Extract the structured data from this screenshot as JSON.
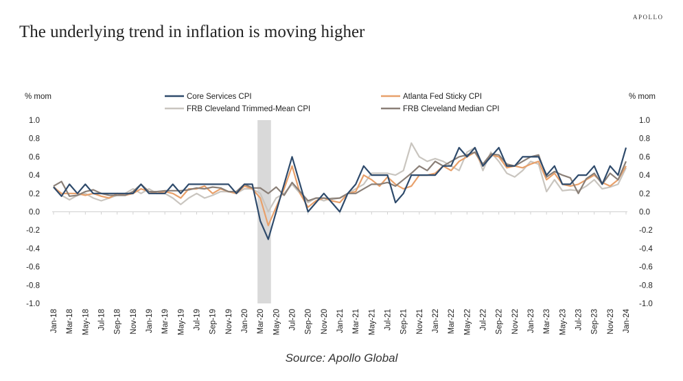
{
  "title": "The underlying trend in inflation is moving higher",
  "brand": "APOLLO",
  "source": "Source: Apollo Global",
  "chart_data": {
    "type": "line",
    "title": "The underlying trend in inflation is moving higher",
    "ylabel_left": "% mom",
    "ylabel_right": "% mom",
    "ylim": [
      -1.0,
      1.0
    ],
    "yticks": [
      "1.0",
      "0.8",
      "0.6",
      "0.4",
      "0.2",
      "0.0",
      "-0.2",
      "-0.4",
      "-0.6",
      "-0.8",
      "-1.0"
    ],
    "x_start": "Jan-18",
    "x_end": "Jan-24",
    "x_frequency": "monthly",
    "xtick_labels": [
      "Jan-18",
      "Mar-18",
      "May-18",
      "Jul-18",
      "Sep-18",
      "Nov-18",
      "Jan-19",
      "Mar-19",
      "May-19",
      "Jul-19",
      "Sep-19",
      "Nov-19",
      "Jan-20",
      "Mar-20",
      "May-20",
      "Jul-20",
      "Sep-20",
      "Nov-20",
      "Jan-21",
      "Mar-21",
      "May-21",
      "Jul-21",
      "Sep-21",
      "Nov-21",
      "Jan-22",
      "Mar-22",
      "May-22",
      "Jul-22",
      "Sep-22",
      "Nov-22",
      "Jan-23",
      "Mar-23",
      "May-23",
      "Jul-23",
      "Sep-23",
      "Nov-23",
      "Jan-24"
    ],
    "shaded_period": {
      "from": "Mar-20",
      "to": "Apr-20",
      "color": "#d9d9d9"
    },
    "grid": false,
    "legend": "top-center",
    "series": [
      {
        "name": "Core Services CPI",
        "color": "#2e4a6b",
        "values": [
          0.27,
          0.17,
          0.3,
          0.2,
          0.3,
          0.2,
          0.2,
          0.2,
          0.2,
          0.2,
          0.2,
          0.3,
          0.2,
          0.2,
          0.2,
          0.3,
          0.2,
          0.3,
          0.3,
          0.3,
          0.3,
          0.3,
          0.3,
          0.2,
          0.3,
          0.3,
          -0.1,
          -0.3,
          0.0,
          0.3,
          0.6,
          0.3,
          0.0,
          0.1,
          0.2,
          0.1,
          0.0,
          0.2,
          0.3,
          0.5,
          0.4,
          0.4,
          0.4,
          0.1,
          0.2,
          0.4,
          0.4,
          0.4,
          0.4,
          0.5,
          0.5,
          0.7,
          0.6,
          0.7,
          0.5,
          0.6,
          0.7,
          0.5,
          0.5,
          0.6,
          0.6,
          0.6,
          0.4,
          0.5,
          0.3,
          0.3,
          0.4,
          0.4,
          0.5,
          0.3,
          0.5,
          0.4,
          0.7
        ]
      },
      {
        "name": "Atlanta Fed Sticky CPI",
        "color": "#e8a06a",
        "values": [
          0.27,
          0.2,
          0.2,
          0.2,
          0.18,
          0.2,
          0.17,
          0.15,
          0.2,
          0.18,
          0.2,
          0.25,
          0.22,
          0.2,
          0.22,
          0.2,
          0.15,
          0.25,
          0.25,
          0.28,
          0.2,
          0.25,
          0.22,
          0.2,
          0.28,
          0.25,
          0.15,
          -0.15,
          0.05,
          0.25,
          0.5,
          0.2,
          0.05,
          0.12,
          0.15,
          0.12,
          0.1,
          0.2,
          0.22,
          0.4,
          0.35,
          0.28,
          0.38,
          0.3,
          0.25,
          0.28,
          0.4,
          0.4,
          0.42,
          0.5,
          0.45,
          0.55,
          0.6,
          0.65,
          0.5,
          0.62,
          0.6,
          0.48,
          0.5,
          0.48,
          0.52,
          0.55,
          0.35,
          0.42,
          0.3,
          0.28,
          0.3,
          0.35,
          0.4,
          0.32,
          0.28,
          0.35,
          0.5
        ]
      },
      {
        "name": "FRB Cleveland Trimmed-Mean CPI",
        "color": "#c9c5bf",
        "values": [
          0.28,
          0.18,
          0.13,
          0.18,
          0.2,
          0.15,
          0.12,
          0.15,
          0.18,
          0.2,
          0.25,
          0.2,
          0.25,
          0.2,
          0.2,
          0.15,
          0.08,
          0.15,
          0.2,
          0.15,
          0.18,
          0.22,
          0.22,
          0.2,
          0.25,
          0.25,
          0.2,
          0.0,
          0.15,
          0.2,
          0.3,
          0.2,
          0.1,
          0.15,
          0.12,
          0.15,
          0.15,
          0.2,
          0.25,
          0.3,
          0.42,
          0.42,
          0.42,
          0.4,
          0.45,
          0.75,
          0.6,
          0.55,
          0.58,
          0.55,
          0.5,
          0.45,
          0.65,
          0.7,
          0.45,
          0.65,
          0.55,
          0.42,
          0.38,
          0.45,
          0.55,
          0.52,
          0.22,
          0.35,
          0.23,
          0.24,
          0.23,
          0.28,
          0.35,
          0.25,
          0.27,
          0.3,
          0.48
        ]
      },
      {
        "name": "FRB Cleveland Median CPI",
        "color": "#8a7f77",
        "values": [
          0.28,
          0.33,
          0.17,
          0.18,
          0.22,
          0.24,
          0.2,
          0.18,
          0.18,
          0.18,
          0.22,
          0.3,
          0.22,
          0.22,
          0.23,
          0.23,
          0.23,
          0.24,
          0.26,
          0.25,
          0.27,
          0.26,
          0.22,
          0.22,
          0.3,
          0.26,
          0.26,
          0.2,
          0.27,
          0.18,
          0.32,
          0.22,
          0.12,
          0.15,
          0.15,
          0.14,
          0.15,
          0.2,
          0.2,
          0.25,
          0.3,
          0.3,
          0.32,
          0.28,
          0.35,
          0.42,
          0.5,
          0.45,
          0.55,
          0.5,
          0.55,
          0.6,
          0.62,
          0.65,
          0.52,
          0.63,
          0.62,
          0.52,
          0.5,
          0.55,
          0.6,
          0.62,
          0.38,
          0.44,
          0.4,
          0.37,
          0.2,
          0.36,
          0.42,
          0.3,
          0.42,
          0.35,
          0.55
        ]
      }
    ]
  }
}
